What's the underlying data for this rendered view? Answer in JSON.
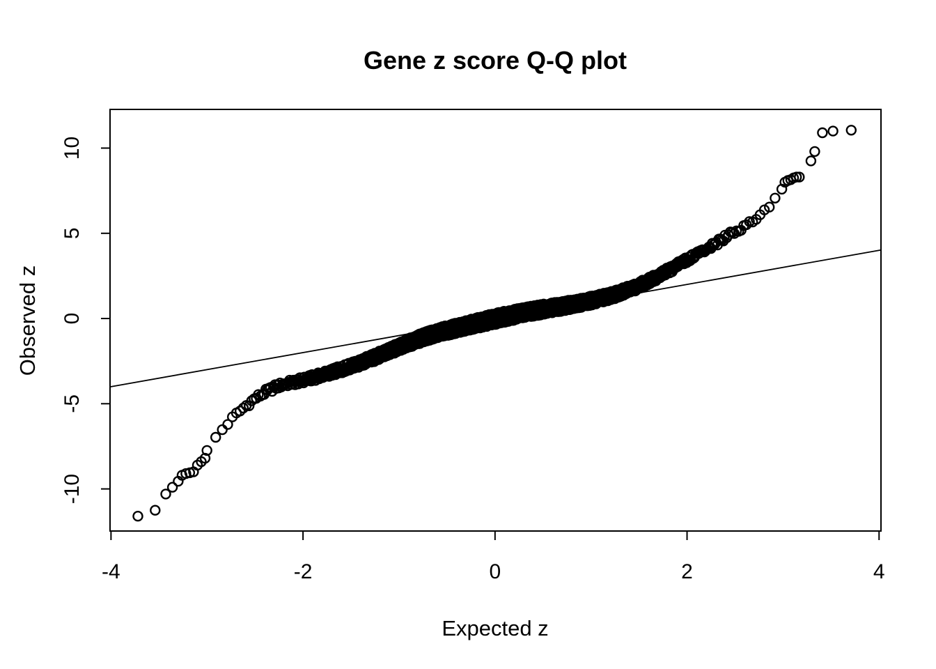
{
  "figure": {
    "title": "Gene z score Q-Q plot"
  },
  "chart_data": {
    "type": "scatter",
    "title": "Gene z score Q-Q plot",
    "xlabel": "Expected z",
    "ylabel": "Observed z",
    "xlim": [
      -4.01,
      4.02
    ],
    "ylim": [
      -12.47,
      12.27
    ],
    "x_ticks": [
      -4,
      -2,
      0,
      2,
      4
    ],
    "y_ticks": [
      -10,
      -5,
      0,
      5,
      10
    ],
    "grid": false,
    "legend": false,
    "background_color": "#ffffff",
    "foreground_color": "#000000",
    "marker": {
      "shape": "open-circle",
      "color": "#000000",
      "radius_px": 6.5,
      "stroke_px": 2.4
    },
    "reference_line": {
      "slope": 1,
      "intercept": 0,
      "color": "#000000",
      "stroke_px": 1.8
    },
    "qq_median_curve": {
      "expected": [
        -3.0,
        -2.9,
        -2.8,
        -2.7,
        -2.6,
        -2.5,
        -2.4,
        -2.3,
        -2.2,
        -2.1,
        -2.0,
        -1.9,
        -1.8,
        -1.7,
        -1.6,
        -1.5,
        -1.4,
        -1.3,
        -1.2,
        -1.1,
        -1.0,
        -0.9,
        -0.8,
        -0.7,
        -0.6,
        -0.5,
        -0.4,
        -0.3,
        -0.2,
        -0.1,
        0.0,
        0.1,
        0.2,
        0.3,
        0.4,
        0.5,
        0.6,
        0.7,
        0.8,
        0.9,
        1.0,
        1.1,
        1.2,
        1.3,
        1.4,
        1.5,
        1.6,
        1.7,
        1.8,
        1.9,
        2.0,
        2.1,
        2.2,
        2.3,
        2.4,
        2.5,
        2.6,
        2.7,
        2.8,
        2.9,
        3.0
      ],
      "observed": [
        -7.8,
        -6.9,
        -6.25,
        -5.65,
        -5.15,
        -4.7,
        -4.35,
        -4.05,
        -3.85,
        -3.75,
        -3.62,
        -3.48,
        -3.32,
        -3.15,
        -2.98,
        -2.8,
        -2.6,
        -2.38,
        -2.15,
        -1.92,
        -1.68,
        -1.45,
        -1.22,
        -1.02,
        -0.85,
        -0.7,
        -0.56,
        -0.42,
        -0.28,
        -0.15,
        -0.02,
        0.1,
        0.22,
        0.33,
        0.44,
        0.54,
        0.63,
        0.72,
        0.82,
        0.93,
        1.05,
        1.18,
        1.33,
        1.5,
        1.7,
        1.93,
        2.2,
        2.5,
        2.8,
        3.12,
        3.45,
        3.75,
        4.05,
        4.4,
        4.75,
        5.1,
        5.45,
        5.85,
        6.3,
        6.85,
        7.8
      ]
    },
    "lower_tail_points": [
      [
        -3.72,
        -11.6
      ],
      [
        -3.54,
        -11.25
      ],
      [
        -3.43,
        -10.3
      ],
      [
        -3.36,
        -9.9
      ],
      [
        -3.3,
        -9.55
      ],
      [
        -3.26,
        -9.2
      ],
      [
        -3.22,
        -9.1
      ],
      [
        -3.18,
        -9.05
      ],
      [
        -3.14,
        -9.0
      ],
      [
        -3.1,
        -8.6
      ],
      [
        -3.06,
        -8.4
      ],
      [
        -3.02,
        -8.2
      ]
    ],
    "upper_tail_points": [
      [
        3.02,
        8.0
      ],
      [
        3.05,
        8.1
      ],
      [
        3.08,
        8.15
      ],
      [
        3.11,
        8.25
      ],
      [
        3.14,
        8.3
      ],
      [
        3.17,
        8.3
      ],
      [
        3.29,
        9.25
      ],
      [
        3.33,
        9.8
      ],
      [
        3.41,
        10.9
      ],
      [
        3.52,
        11.0
      ],
      [
        3.71,
        11.05
      ]
    ],
    "dense_body": {
      "n": 2500,
      "x_range": [
        -3.0,
        3.0
      ],
      "vertical_spread_center": 0.34,
      "vertical_spread_edge": 0.12
    }
  }
}
